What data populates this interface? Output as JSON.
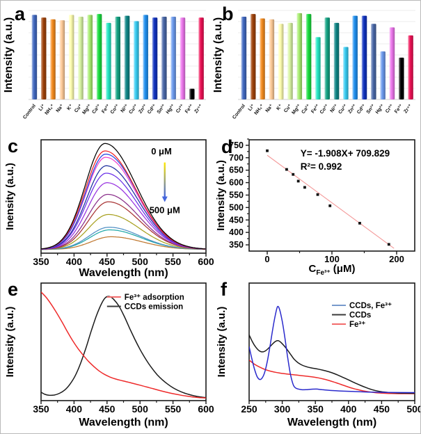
{
  "panel_letters": {
    "a": "a",
    "b": "b",
    "c": "c",
    "d": "d",
    "e": "e",
    "f": "f"
  },
  "chart_data": [
    {
      "panel": "a",
      "type": "bar",
      "title": "",
      "ylabel": "Intensity (a.u.)",
      "grid": true,
      "ylim": [
        0,
        1
      ],
      "categories": [
        "Control",
        "Li⁺",
        "NH₄⁺",
        "Na⁺",
        "K⁺",
        "Cu⁺",
        "Mg²⁺",
        "Ca²⁺",
        "Fe²⁺",
        "Co²⁺",
        "Ni²⁺",
        "Cu²⁺",
        "Zn²⁺",
        "Cd²⁺",
        "Sn²⁺",
        "Hg²⁺",
        "Cr³⁺",
        "Fe³⁺",
        "Zr⁴⁺"
      ],
      "values": [
        0.95,
        0.92,
        0.9,
        0.89,
        0.95,
        0.93,
        0.95,
        0.96,
        0.86,
        0.93,
        0.94,
        0.88,
        0.95,
        0.92,
        0.93,
        0.93,
        0.92,
        0.12,
        0.92
      ],
      "bar_colors": [
        "#4169C1",
        "#A0430A",
        "#F58C1F",
        "#FFCC99",
        "#FFFFB0",
        "#D9F5A3",
        "#A9EE70",
        "#17DD3E",
        "#26E8C5",
        "#13A383",
        "#0E8585",
        "#38CCF2",
        "#2090F0",
        "#1032C0",
        "#4A68A8",
        "#6C9AEE",
        "#EE77EE",
        "#000000",
        "#EE1155"
      ]
    },
    {
      "panel": "b",
      "type": "bar",
      "title": "",
      "ylabel": "Intensity (a.u.)",
      "grid": true,
      "ylim": [
        0,
        1
      ],
      "categories": [
        "Control",
        "Li⁺",
        "NH₄⁺",
        "Na⁺",
        "K⁺",
        "Cu⁺",
        "Mg²⁺",
        "Ca²⁺",
        "Fe²⁺",
        "Co²⁺",
        "Ni²⁺",
        "Cu²⁺",
        "Zn²⁺",
        "Cd²⁺",
        "Sn²⁺",
        "Hg²⁺",
        "Cr³⁺",
        "Fe³⁺",
        "Zr⁴⁺"
      ],
      "values": [
        0.93,
        0.96,
        0.91,
        0.9,
        0.85,
        0.86,
        0.97,
        0.96,
        0.7,
        0.92,
        0.86,
        0.59,
        0.94,
        0.94,
        0.85,
        0.54,
        0.81,
        0.47,
        0.72
      ],
      "bar_colors": [
        "#4169C1",
        "#A0430A",
        "#F58C1F",
        "#FFCC99",
        "#FFFFB0",
        "#D9F5A3",
        "#A9EE70",
        "#17DD3E",
        "#26E8C5",
        "#13A383",
        "#0E8585",
        "#38CCF2",
        "#2090F0",
        "#1032C0",
        "#4A68A8",
        "#6C9AEE",
        "#EE77EE",
        "#000000",
        "#EE1155"
      ]
    },
    {
      "panel": "c",
      "type": "line",
      "title": "",
      "ylabel": "Inensity (a.u.)",
      "xlabel": "Wavelength (nm)",
      "xlim": [
        350,
        600
      ],
      "xticks": [
        350,
        400,
        450,
        500,
        550,
        600
      ],
      "ylim": [
        0,
        1.07
      ],
      "curve_shape": {
        "sigma_left": 30,
        "sigma_right": 47,
        "baseline": 0.035
      },
      "series": [
        {
          "color": "#000000",
          "peak_nm": 447,
          "peak_intensity": 1.0
        },
        {
          "color": "#EE2020",
          "peak_nm": 447,
          "peak_intensity": 0.93
        },
        {
          "color": "#2244E0",
          "peak_nm": 448,
          "peak_intensity": 0.9
        },
        {
          "color": "#EE44CE",
          "peak_nm": 448,
          "peak_intensity": 0.87
        },
        {
          "color": "#1C2F9E",
          "peak_nm": 449,
          "peak_intensity": 0.79
        },
        {
          "color": "#6A30E8",
          "peak_nm": 449,
          "peak_intensity": 0.72
        },
        {
          "color": "#9832E0",
          "peak_nm": 450,
          "peak_intensity": 0.63
        },
        {
          "color": "#8A2F8A",
          "peak_nm": 451,
          "peak_intensity": 0.52
        },
        {
          "color": "#A83434",
          "peak_nm": 452,
          "peak_intensity": 0.45
        },
        {
          "color": "#A8A020",
          "peak_nm": 452,
          "peak_intensity": 0.33
        },
        {
          "color": "#4F8FC4",
          "peak_nm": 453,
          "peak_intensity": 0.21
        },
        {
          "color": "#20A8A8",
          "peak_nm": 454,
          "peak_intensity": 0.185
        },
        {
          "color": "#C07830",
          "peak_nm": 456,
          "peak_intensity": 0.12
        }
      ],
      "annotations": {
        "arrow_top_label": "0 μM",
        "arrow_bottom_label": "500 μM",
        "arrow_color_top": "#FFE800",
        "arrow_color_bottom": "#4466DD"
      }
    },
    {
      "panel": "d",
      "type": "scatter",
      "title": "",
      "ylabel": "Intensity (a.u.)",
      "xlabel_main": "C",
      "xlabel_sub": "Fe³⁺",
      "xlabel_rest": " (μM)",
      "xlim": [
        -28,
        228
      ],
      "ylim": [
        325,
        772
      ],
      "xticks": [
        0,
        100,
        200
      ],
      "xticks_minor": [
        50,
        150
      ],
      "yticks": [
        350,
        400,
        450,
        500,
        550,
        600,
        650,
        700,
        750
      ],
      "points": [
        [
          0,
          728
        ],
        [
          30,
          653
        ],
        [
          40,
          633
        ],
        [
          48,
          606
        ],
        [
          58,
          581
        ],
        [
          78,
          552
        ],
        [
          97,
          507
        ],
        [
          143,
          437
        ],
        [
          188,
          352
        ]
      ],
      "fit": {
        "slope": -1.908,
        "intercept": 709.829,
        "x_start": 0,
        "x_end": 196,
        "color": "#F49A9A"
      },
      "equation": "Y= -1.908X+ 709.829",
      "r_squared": "R²= 0.992",
      "marker_color": "#111111"
    },
    {
      "panel": "e",
      "type": "line",
      "title": "",
      "ylabel": "Intensity (a.u.)",
      "xlabel": "Wavelength (nm)",
      "xlim": [
        350,
        600
      ],
      "xticks": [
        350,
        400,
        450,
        500,
        550,
        600
      ],
      "ylim": [
        0,
        1.05
      ],
      "legend": [
        {
          "label": "Fe³⁺ adsorption",
          "swatch": "#F26B6B"
        },
        {
          "label": "CCDs emission",
          "swatch": "#3A3A3A"
        }
      ],
      "series": [
        {
          "name": "Fe³⁺ adsorption",
          "color": "#EE2A2A",
          "points": [
            [
              350,
              0.97
            ],
            [
              358,
              0.92
            ],
            [
              366,
              0.855
            ],
            [
              374,
              0.78
            ],
            [
              382,
              0.7
            ],
            [
              390,
              0.615
            ],
            [
              398,
              0.535
            ],
            [
              406,
              0.465
            ],
            [
              414,
              0.405
            ],
            [
              422,
              0.35
            ],
            [
              430,
              0.305
            ],
            [
              438,
              0.265
            ],
            [
              446,
              0.235
            ],
            [
              454,
              0.212
            ],
            [
              462,
              0.195
            ],
            [
              470,
              0.182
            ],
            [
              480,
              0.168
            ],
            [
              490,
              0.153
            ],
            [
              500,
              0.138
            ],
            [
              510,
              0.122
            ],
            [
              520,
              0.106
            ],
            [
              530,
              0.09
            ],
            [
              540,
              0.075
            ],
            [
              550,
              0.062
            ],
            [
              560,
              0.051
            ],
            [
              570,
              0.041
            ],
            [
              580,
              0.033
            ],
            [
              590,
              0.027
            ],
            [
              600,
              0.023
            ]
          ]
        },
        {
          "name": "CCDs emission",
          "color": "#1A1A1A",
          "points": [
            [
              350,
              0.075
            ],
            [
              356,
              0.056
            ],
            [
              362,
              0.048
            ],
            [
              370,
              0.05
            ],
            [
              378,
              0.065
            ],
            [
              386,
              0.095
            ],
            [
              394,
              0.148
            ],
            [
              402,
              0.225
            ],
            [
              410,
              0.335
            ],
            [
              418,
              0.47
            ],
            [
              426,
              0.62
            ],
            [
              434,
              0.76
            ],
            [
              442,
              0.87
            ],
            [
              448,
              0.922
            ],
            [
              454,
              0.93
            ],
            [
              460,
              0.905
            ],
            [
              468,
              0.845
            ],
            [
              476,
              0.755
            ],
            [
              484,
              0.65
            ],
            [
              492,
              0.55
            ],
            [
              500,
              0.458
            ],
            [
              510,
              0.358
            ],
            [
              518,
              0.29
            ],
            [
              526,
              0.232
            ],
            [
              534,
              0.185
            ],
            [
              542,
              0.147
            ],
            [
              550,
              0.115
            ],
            [
              558,
              0.09
            ],
            [
              566,
              0.07
            ],
            [
              574,
              0.055
            ],
            [
              582,
              0.043
            ],
            [
              590,
              0.034
            ],
            [
              600,
              0.027
            ]
          ]
        }
      ]
    },
    {
      "panel": "f",
      "type": "line",
      "title": "",
      "ylabel": "Intensity (a.u.)",
      "xlabel": "Wavelength (nm)",
      "xlim": [
        250,
        500
      ],
      "xticks": [
        250,
        300,
        350,
        400,
        450,
        500
      ],
      "ylim": [
        0,
        1.0
      ],
      "legend": [
        {
          "label": "CCDs, Fe³⁺",
          "swatch": "#7799CC"
        },
        {
          "label": "CCDs",
          "swatch": "#3A3A3A"
        },
        {
          "label": "Fe³⁺",
          "swatch": "#F26B6B"
        }
      ],
      "series": [
        {
          "name": "CCDs, Fe³⁺",
          "color": "#2A2ACC",
          "points": [
            [
              250,
              0.46
            ],
            [
              254,
              0.36
            ],
            [
              258,
              0.27
            ],
            [
              262,
              0.205
            ],
            [
              266,
              0.18
            ],
            [
              270,
              0.195
            ],
            [
              274,
              0.25
            ],
            [
              278,
              0.35
            ],
            [
              282,
              0.48
            ],
            [
              286,
              0.62
            ],
            [
              290,
              0.74
            ],
            [
              293,
              0.8
            ],
            [
              296,
              0.775
            ],
            [
              300,
              0.675
            ],
            [
              304,
              0.535
            ],
            [
              308,
              0.375
            ],
            [
              312,
              0.235
            ],
            [
              316,
              0.145
            ],
            [
              320,
              0.108
            ],
            [
              328,
              0.094
            ],
            [
              336,
              0.093
            ],
            [
              344,
              0.097
            ],
            [
              352,
              0.098
            ],
            [
              360,
              0.093
            ],
            [
              375,
              0.086
            ],
            [
              400,
              0.079
            ],
            [
              430,
              0.073
            ],
            [
              460,
              0.07
            ],
            [
              500,
              0.068
            ]
          ]
        },
        {
          "name": "CCDs",
          "color": "#1A1A1A",
          "points": [
            [
              250,
              0.56
            ],
            [
              255,
              0.5
            ],
            [
              260,
              0.455
            ],
            [
              265,
              0.425
            ],
            [
              270,
              0.415
            ],
            [
              275,
              0.425
            ],
            [
              280,
              0.45
            ],
            [
              285,
              0.48
            ],
            [
              290,
              0.505
            ],
            [
              294,
              0.51
            ],
            [
              298,
              0.495
            ],
            [
              303,
              0.465
            ],
            [
              308,
              0.43
            ],
            [
              313,
              0.39
            ],
            [
              318,
              0.352
            ],
            [
              324,
              0.322
            ],
            [
              330,
              0.302
            ],
            [
              338,
              0.286
            ],
            [
              346,
              0.276
            ],
            [
              354,
              0.268
            ],
            [
              362,
              0.258
            ],
            [
              370,
              0.246
            ],
            [
              378,
              0.231
            ],
            [
              386,
              0.212
            ],
            [
              394,
              0.192
            ],
            [
              402,
              0.171
            ],
            [
              410,
              0.15
            ],
            [
              418,
              0.13
            ],
            [
              426,
              0.112
            ],
            [
              434,
              0.096
            ],
            [
              442,
              0.084
            ],
            [
              450,
              0.076
            ],
            [
              460,
              0.07
            ],
            [
              470,
              0.066
            ],
            [
              480,
              0.064
            ],
            [
              490,
              0.063
            ],
            [
              500,
              0.062
            ]
          ]
        },
        {
          "name": "Fe³⁺",
          "color": "#EE2A2A",
          "points": [
            [
              250,
              0.345
            ],
            [
              258,
              0.31
            ],
            [
              266,
              0.285
            ],
            [
              274,
              0.265
            ],
            [
              282,
              0.251
            ],
            [
              290,
              0.241
            ],
            [
              298,
              0.233
            ],
            [
              306,
              0.227
            ],
            [
              314,
              0.222
            ],
            [
              322,
              0.217
            ],
            [
              330,
              0.212
            ],
            [
              338,
              0.207
            ],
            [
              346,
              0.201
            ],
            [
              354,
              0.194
            ],
            [
              362,
              0.184
            ],
            [
              370,
              0.172
            ],
            [
              378,
              0.158
            ],
            [
              386,
              0.143
            ],
            [
              394,
              0.127
            ],
            [
              402,
              0.112
            ],
            [
              410,
              0.099
            ],
            [
              418,
              0.088
            ],
            [
              426,
              0.079
            ],
            [
              434,
              0.072
            ],
            [
              442,
              0.067
            ],
            [
              450,
              0.064
            ],
            [
              460,
              0.061
            ],
            [
              470,
              0.06
            ],
            [
              480,
              0.059
            ],
            [
              490,
              0.059
            ],
            [
              500,
              0.059
            ]
          ]
        }
      ]
    }
  ]
}
